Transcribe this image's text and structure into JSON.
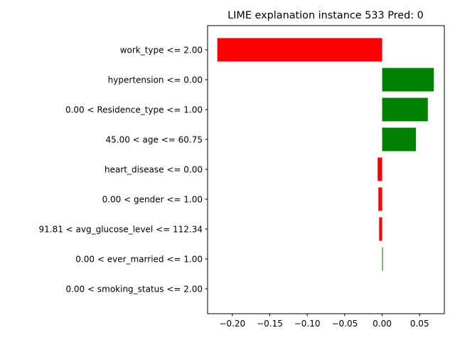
{
  "chart_data": {
    "type": "bar",
    "orientation": "horizontal",
    "title": "LIME explanation instance 533 Pred: 0",
    "xlabel": "",
    "ylabel": "",
    "categories": [
      "work_type <= 2.00",
      "hypertension <= 0.00",
      "0.00 < Residence_type <= 1.00",
      "45.00 < age <= 60.75",
      "heart_disease <= 0.00",
      "0.00 < gender <= 1.00",
      "91.81 < avg_glucose_level <= 112.34",
      "0.00 < ever_married <= 1.00",
      "0.00 < smoking_status <= 2.00"
    ],
    "values": [
      -0.22,
      0.069,
      0.061,
      0.045,
      -0.006,
      -0.005,
      -0.004,
      0.001,
      0.0
    ],
    "xlim": [
      -0.233,
      0.083
    ],
    "xticks": [
      -0.2,
      -0.15,
      -0.1,
      -0.05,
      0.0,
      0.05
    ],
    "xtick_labels": [
      "−0.20",
      "−0.15",
      "−0.10",
      "−0.05",
      "0.00",
      "0.05"
    ],
    "colors": {
      "positive": "#008000",
      "negative": "#ff0000"
    },
    "grid": false,
    "legend": "none"
  }
}
